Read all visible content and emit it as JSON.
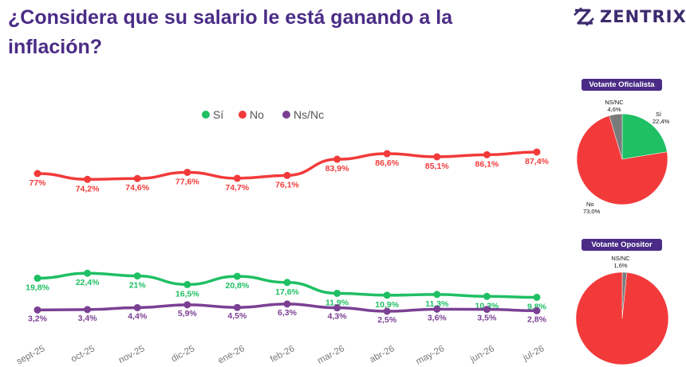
{
  "title": "¿Considera que su salario le está ganando a la inflación?",
  "brand": "ZENTRIX",
  "colors": {
    "si": "#1fbf63",
    "no": "#f23a3a",
    "nsnc": "#7b4094",
    "title": "#4a2c86",
    "nsnc_pie": "#7a7a7a"
  },
  "chart_data": [
    {
      "type": "line",
      "categories": [
        "sept-25",
        "oct-25",
        "nov-25",
        "dic-25",
        "ene-26",
        "feb-26",
        "mar-26",
        "abr-26",
        "may-26",
        "jun-26",
        "jul-26"
      ],
      "legend_position": "top",
      "series": [
        {
          "name": "No",
          "color": "#f23a3a",
          "values": [
            77,
            74.2,
            74.6,
            77.6,
            74.7,
            76.1,
            83.9,
            86.6,
            85.1,
            86.1,
            87.4
          ],
          "labels": [
            "77%",
            "74,2%",
            "74,6%",
            "77,6%",
            "74,7%",
            "76,1%",
            "83,9%",
            "86,6%",
            "85,1%",
            "86,1%",
            "87,4%"
          ]
        },
        {
          "name": "Sí",
          "color": "#1fbf63",
          "values": [
            19.8,
            22.4,
            21,
            16.5,
            20.8,
            17.6,
            11.9,
            10.9,
            11.3,
            10.3,
            9.8
          ],
          "labels": [
            "19,8%",
            "22,4%",
            "21%",
            "16,5%",
            "20,8%",
            "17,6%",
            "11,9%",
            "10,9%",
            "11,3%",
            "10,3%",
            "9,8%"
          ]
        },
        {
          "name": "Ns/Nc",
          "color": "#7b4094",
          "values": [
            3.2,
            3.4,
            4.4,
            5.9,
            4.5,
            6.3,
            4.3,
            2.5,
            3.6,
            3.5,
            2.8
          ],
          "labels": [
            "3,2%",
            "3,4%",
            "4,4%",
            "5,9%",
            "4,5%",
            "6,3%",
            "4,3%",
            "2,5%",
            "3,6%",
            "3,5%",
            "2,8%"
          ]
        }
      ],
      "legend": [
        "Sí",
        "No",
        "Ns/Nc"
      ]
    },
    {
      "type": "pie",
      "title": "Votante Oficialista",
      "slices": [
        {
          "name": "Sí",
          "value": 22.4,
          "label": "22,4%",
          "color": "#1fbf63"
        },
        {
          "name": "No",
          "value": 73.0,
          "label": "73,0%",
          "color": "#f23a3a"
        },
        {
          "name": "NS/NC",
          "value": 4.6,
          "label": "4,6%",
          "color": "#7a7a7a"
        }
      ]
    },
    {
      "type": "pie",
      "title": "Votante Opositor",
      "slices": [
        {
          "name": "NS/NC",
          "value": 1.6,
          "label": "1,6%",
          "color": "#7a7a7a"
        },
        {
          "name": "No",
          "value": 98.4,
          "label": "",
          "color": "#f23a3a"
        }
      ]
    }
  ]
}
